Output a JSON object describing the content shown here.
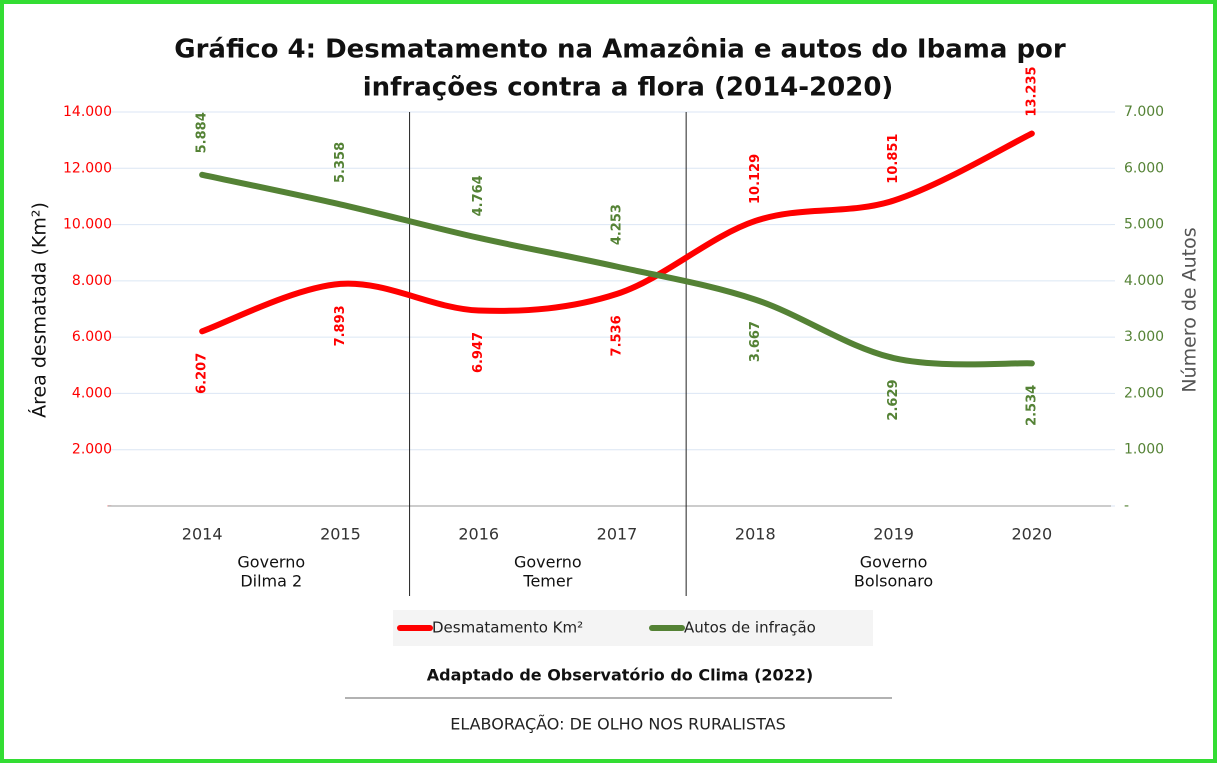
{
  "chart_data": {
    "type": "line",
    "title": [
      "Gráfico 4: Desmatamento na Amazônia e autos do Ibama por",
      "infrações contra a flora (2014-2020)"
    ],
    "categories": [
      "2014",
      "2015",
      "2016",
      "2017",
      "2018",
      "2019",
      "2020"
    ],
    "series": [
      {
        "name": "Desmatamento Km²",
        "color": "#ff0000",
        "axis": "y",
        "values": [
          6207,
          7893,
          6947,
          7536,
          10129,
          10851,
          13235
        ],
        "value_labels": [
          "6.207",
          "7.893",
          "6.947",
          "7.536",
          "10.129",
          "10.851",
          "13.235"
        ]
      },
      {
        "name": "Autos de infração",
        "color": "#548235",
        "axis": "y2",
        "values": [
          5884,
          5358,
          4764,
          4253,
          3667,
          2629,
          2534
        ],
        "value_labels": [
          "5.884",
          "5.358",
          "4.764",
          "4.253",
          "3.667",
          "2.629",
          "2.534"
        ]
      }
    ],
    "ylabel": "Área desmatada (Km²)",
    "y2label": "Número de Autos",
    "ylim": [
      0,
      14000
    ],
    "yticks": [
      {
        "value": 0,
        "label": "-"
      },
      {
        "value": 2000,
        "label": "2.000"
      },
      {
        "value": 4000,
        "label": "4.000"
      },
      {
        "value": 6000,
        "label": "6.000"
      },
      {
        "value": 8000,
        "label": "8.000"
      },
      {
        "value": 10000,
        "label": "10.000"
      },
      {
        "value": 12000,
        "label": "12.000"
      },
      {
        "value": 14000,
        "label": "14.000"
      }
    ],
    "y2lim": [
      0,
      7000
    ],
    "y2ticks": [
      {
        "value": 0,
        "label": "-"
      },
      {
        "value": 1000,
        "label": "1.000"
      },
      {
        "value": 2000,
        "label": "2.000"
      },
      {
        "value": 3000,
        "label": "3.000"
      },
      {
        "value": 4000,
        "label": "4.000"
      },
      {
        "value": 5000,
        "label": "5.000"
      },
      {
        "value": 6000,
        "label": "6.000"
      },
      {
        "value": 7000,
        "label": "7.000"
      }
    ],
    "grid": true,
    "annotations": [
      {
        "lines": [
          "Governo",
          "Dilma 2"
        ]
      },
      {
        "lines": [
          "Governo",
          "Temer"
        ]
      },
      {
        "lines": [
          "Governo",
          "Bolsonaro"
        ]
      }
    ],
    "source": "Adaptado de Observatório do Clima (2022)",
    "credit": "ELABORAÇÃO: DE OLHO NOS RURALISTAS"
  }
}
